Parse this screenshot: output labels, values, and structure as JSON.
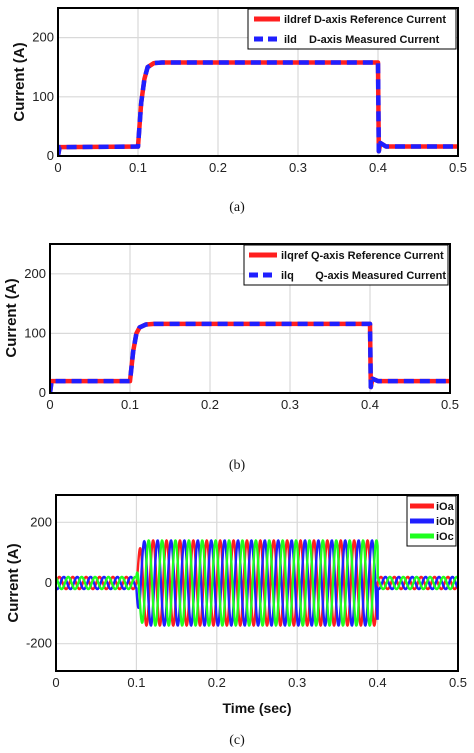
{
  "chart_data": [
    {
      "type": "line",
      "caption": "(a)",
      "ylabel": "Current (A)",
      "xlabel": "",
      "xlim": [
        0,
        0.5
      ],
      "ylim": [
        0,
        250
      ],
      "xticks": [
        0,
        0.1,
        0.2,
        0.3,
        0.4,
        0.5
      ],
      "yticks": [
        0,
        100,
        200
      ],
      "grid": true,
      "legend_position": "top-right",
      "series": [
        {
          "name": "ildref D-axis Reference Current",
          "color": "#ff1f1f",
          "style": "solid",
          "x": [
            0,
            0.002,
            0.1,
            0.104,
            0.108,
            0.112,
            0.12,
            0.13,
            0.4,
            0.401,
            0.403,
            0.41,
            0.5
          ],
          "y": [
            0,
            15,
            16,
            90,
            130,
            150,
            157,
            158,
            158,
            8,
            22,
            16,
            16
          ]
        },
        {
          "name": "ild    D-axis Measured Current",
          "color": "#1f1fff",
          "style": "dashed",
          "x": [
            0,
            0.002,
            0.1,
            0.104,
            0.108,
            0.112,
            0.12,
            0.13,
            0.4,
            0.401,
            0.403,
            0.41,
            0.5
          ],
          "y": [
            0,
            15,
            16,
            90,
            130,
            150,
            157,
            158,
            158,
            8,
            22,
            16,
            16
          ]
        }
      ]
    },
    {
      "type": "line",
      "caption": "(b)",
      "ylabel": "Current (A)",
      "xlabel": "",
      "xlim": [
        0,
        0.5
      ],
      "ylim": [
        0,
        250
      ],
      "xticks": [
        0,
        0.1,
        0.2,
        0.3,
        0.4,
        0.5
      ],
      "yticks": [
        0,
        100,
        200
      ],
      "grid": true,
      "legend_position": "top-right",
      "series": [
        {
          "name": "ilqref Q-axis Reference Current",
          "color": "#ff1f1f",
          "style": "solid",
          "x": [
            0,
            0.002,
            0.1,
            0.104,
            0.108,
            0.112,
            0.12,
            0.13,
            0.4,
            0.401,
            0.403,
            0.41,
            0.5
          ],
          "y": [
            0,
            20,
            20,
            70,
            100,
            110,
            115,
            116,
            116,
            10,
            24,
            20,
            20
          ]
        },
        {
          "name": "ilq       Q-axis Measured Current",
          "color": "#1f1fff",
          "style": "dashed",
          "x": [
            0,
            0.002,
            0.1,
            0.104,
            0.108,
            0.112,
            0.12,
            0.13,
            0.4,
            0.401,
            0.403,
            0.41,
            0.5
          ],
          "y": [
            0,
            20,
            20,
            70,
            100,
            110,
            115,
            116,
            116,
            10,
            24,
            20,
            20
          ]
        }
      ]
    },
    {
      "type": "line",
      "caption": "(c)",
      "ylabel": "Current (A)",
      "xlabel": "Time (sec)",
      "xlim": [
        0,
        0.5
      ],
      "ylim": [
        -290,
        290
      ],
      "xticks": [
        0,
        0.1,
        0.2,
        0.3,
        0.4,
        0.5
      ],
      "yticks": [
        -200,
        0,
        200
      ],
      "grid": true,
      "legend_position": "top-right",
      "waveform": "three-phase sinusoid, 60 Hz",
      "frequency_hz": 60,
      "amplitude_low_A": 20,
      "amplitude_high_A": 140,
      "high_interval_sec": [
        0.1,
        0.4
      ],
      "series": [
        {
          "name": "iOa",
          "color": "#ff1f1f",
          "phase_deg": 0
        },
        {
          "name": "iOb",
          "color": "#1f1fff",
          "phase_deg": -120
        },
        {
          "name": "iOc",
          "color": "#1fff1f",
          "phase_deg": 120
        }
      ]
    }
  ]
}
